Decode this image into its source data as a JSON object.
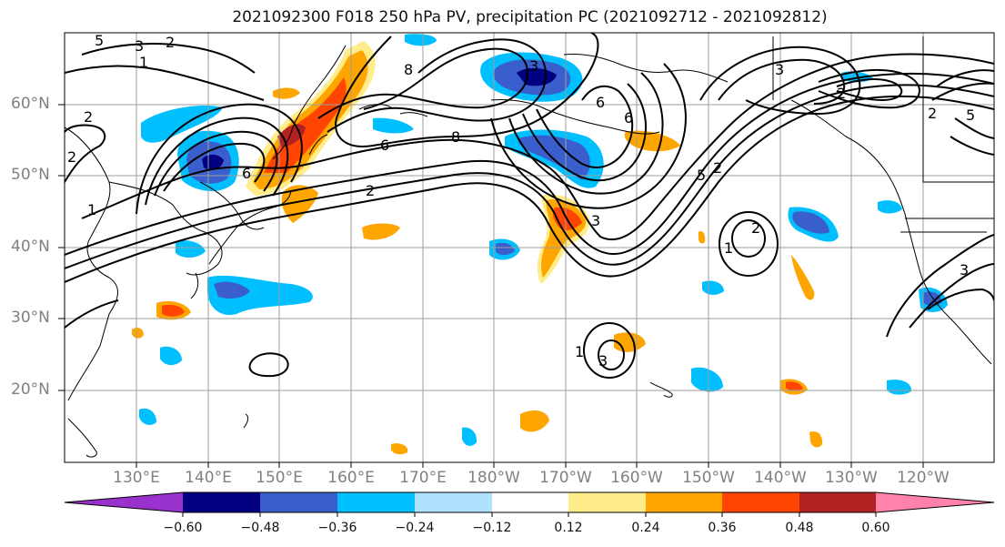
{
  "title": "2021092300 F018 250 hPa PV, precipitation PC (2021092712 - 2021092812)",
  "lat_labels": [
    "60°N",
    "50°N",
    "40°N",
    "30°N",
    "20°N"
  ],
  "lon_labels": [
    "130°E",
    "140°E",
    "150°E",
    "160°E",
    "170°E",
    "180°W",
    "170°W",
    "160°W",
    "150°W",
    "140°W",
    "130°W",
    "120°W"
  ],
  "contour_labels": [
    "5",
    "3",
    "2",
    "1",
    "2",
    "2",
    "1",
    "6",
    "2",
    "8",
    "6",
    "8",
    "3",
    "6",
    "6",
    "5",
    "2",
    "1",
    "2",
    "3",
    "3",
    "3",
    "1",
    "3",
    "5",
    "2",
    "2"
  ],
  "colorbar": {
    "ticks": [
      "−0.60",
      "−0.48",
      "−0.36",
      "−0.24",
      "−0.12",
      "0.12",
      "0.24",
      "0.36",
      "0.48",
      "0.60"
    ],
    "colors": [
      "#9932CC",
      "#000080",
      "#3A5FCD",
      "#00BFFF",
      "#B0E2FF",
      "#FFFFFF",
      "#FFEC8B",
      "#FFA500",
      "#FF4500",
      "#B22222",
      "#FF82AB"
    ]
  }
}
